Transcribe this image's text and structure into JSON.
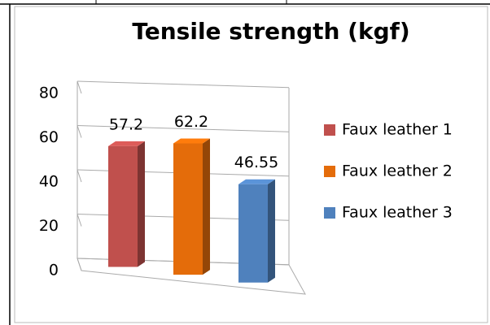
{
  "chart_data": {
    "type": "bar3d",
    "title": "Tensile strength (kgf)",
    "categories": [
      null
    ],
    "series": [
      {
        "name": "Faux leather 1",
        "color": "#c0504d",
        "values": [
          57.2
        ]
      },
      {
        "name": "Faux leather 2",
        "color": "#e46c0a",
        "values": [
          62.2
        ]
      },
      {
        "name": "Faux leather 3",
        "color": "#4f81bd",
        "values": [
          46.55
        ]
      }
    ],
    "ylim": [
      0,
      80
    ],
    "yticks": [
      0,
      20,
      40,
      60,
      80
    ],
    "grid": true,
    "legend": "right",
    "data_labels": true
  }
}
